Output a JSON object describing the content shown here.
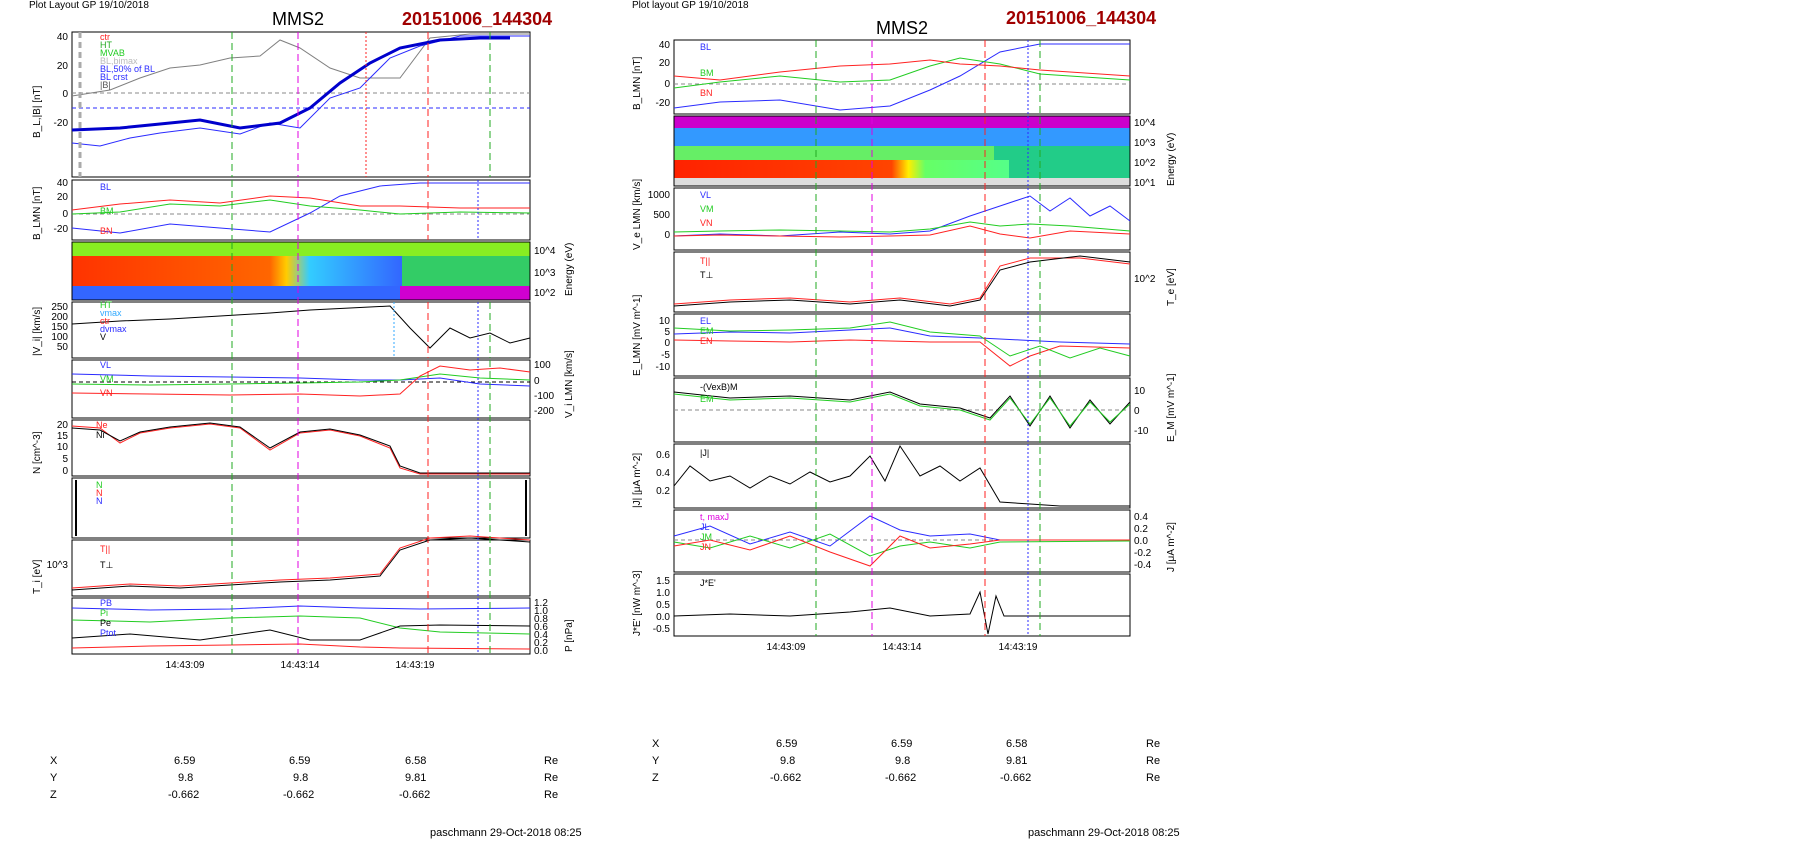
{
  "left": {
    "header": "Plot Layout GP 19/10/2018",
    "title": "MMS2",
    "event": "20151006_144304",
    "footer": "paschmann 29-Oct-2018 08:25",
    "time_ticks": [
      "14:43:09",
      "14:43:14",
      "14:43:19"
    ],
    "ephemeris": {
      "rows": [
        {
          "label": "X",
          "values": [
            "6.59",
            "6.59",
            "6.58"
          ],
          "unit": "Re"
        },
        {
          "label": "Y",
          "values": [
            "9.8",
            "9.8",
            "9.81"
          ],
          "unit": "Re"
        },
        {
          "label": "Z",
          "values": [
            "-0.662",
            "-0.662",
            "-0.662"
          ],
          "unit": "Re"
        }
      ]
    },
    "panels": {
      "p1": {
        "ylabel": "B_L,|B| [nT]",
        "yticks": [
          "40",
          "20",
          "0",
          "-20"
        ],
        "legend": [
          "ctr",
          "HT",
          "MVAB",
          "BL,bimax",
          "BL,50% of BL",
          "BL crst",
          "|B|"
        ]
      },
      "p2": {
        "ylabel": "B_LMN [nT]",
        "yticks": [
          "40",
          "20",
          "0",
          "-20"
        ],
        "legend": [
          "BL",
          "BM",
          "BN"
        ]
      },
      "p3": {
        "ylabel": "Energy (eV)",
        "yticks": [
          "10^4",
          "10^3",
          "10^2"
        ]
      },
      "p4": {
        "ylabel": "|V_i| [km/s]",
        "yticks": [
          "250",
          "200",
          "150",
          "100",
          "50"
        ],
        "legend": [
          "HT",
          "vmax",
          "ctr",
          "dvmax",
          "V"
        ]
      },
      "p5": {
        "ylabel": "V_i LMN [km/s]",
        "yticks": [
          "100",
          "0",
          "-100",
          "-200"
        ],
        "legend": [
          "VL",
          "VM",
          "VN"
        ]
      },
      "p6": {
        "ylabel": "N [cm^-3]",
        "yticks": [
          "20",
          "15",
          "10",
          "5",
          "0"
        ],
        "legend": [
          "Ne",
          "Ni"
        ]
      },
      "p7": {
        "ylabel": "N [cm^-3]",
        "legend": [
          "N",
          "N",
          "N"
        ]
      },
      "p8": {
        "ylabel": "T_i [eV]",
        "yticks": [
          "10^3"
        ],
        "legend": [
          "T||",
          "T⊥"
        ]
      },
      "p9": {
        "ylabel": "P [nPa]",
        "yticks": [
          "1.2",
          "1.0",
          "0.8",
          "0.6",
          "0.4",
          "0.2",
          "0.0"
        ],
        "legend": [
          "PB",
          "Pi",
          "Pe",
          "Ptot"
        ]
      }
    }
  },
  "right": {
    "header": "Plot layout GP 19/10/2018",
    "title": "MMS2",
    "event": "20151006_144304",
    "footer": "paschmann 29-Oct-2018 08:25",
    "time_ticks": [
      "14:43:09",
      "14:43:14",
      "14:43:19"
    ],
    "ephemeris": {
      "rows": [
        {
          "label": "X",
          "values": [
            "6.59",
            "6.59",
            "6.58"
          ],
          "unit": "Re"
        },
        {
          "label": "Y",
          "values": [
            "9.8",
            "9.8",
            "9.81"
          ],
          "unit": "Re"
        },
        {
          "label": "Z",
          "values": [
            "-0.662",
            "-0.662",
            "-0.662"
          ],
          "unit": "Re"
        }
      ]
    },
    "panels": {
      "q1": {
        "ylabel": "B_LMN [nT]",
        "yticks": [
          "40",
          "20",
          "0",
          "-20"
        ],
        "legend": [
          "BL",
          "BM",
          "BN"
        ]
      },
      "q2": {
        "ylabel": "Energy (eV)",
        "yticks": [
          "10^4",
          "10^3",
          "10^2",
          "10^1"
        ]
      },
      "q3": {
        "ylabel": "V_e LMN [km/s]",
        "yticks": [
          "1000",
          "500",
          "0"
        ],
        "legend": [
          "VL",
          "VM",
          "VN"
        ]
      },
      "q4": {
        "ylabel": "T_e [eV]",
        "yticks": [
          "10^2"
        ],
        "legend": [
          "T||",
          "T⊥"
        ]
      },
      "q5": {
        "ylabel": "E_LMN [mV m^-1]",
        "yticks": [
          "10",
          "5",
          "0",
          "-5",
          "-10"
        ],
        "legend": [
          "EL",
          "EM",
          "EN"
        ]
      },
      "q6": {
        "ylabel": "E_M [mV m^-1]",
        "yticks": [
          "10",
          "0",
          "-10"
        ],
        "legend": [
          "-(VexB)M",
          "EM"
        ]
      },
      "q7": {
        "ylabel": "|J| [μA m^-2]",
        "yticks": [
          "0.6",
          "0.4",
          "0.2"
        ],
        "legend": [
          "|J|"
        ]
      },
      "q8": {
        "ylabel": "J [μA m^-2]",
        "yticks": [
          "0.4",
          "0.2",
          "0.0",
          "-0.2",
          "-0.4"
        ],
        "legend": [
          "t, maxJ",
          "JL",
          "JM",
          "JN"
        ]
      },
      "q9": {
        "ylabel": "J*E' [nW m^-3]",
        "yticks": [
          "1.5",
          "1.0",
          "0.5",
          "0.0",
          "-0.5"
        ],
        "legend": [
          "J*E'"
        ]
      }
    }
  },
  "colors": {
    "L": "#2b2bff",
    "M": "#22cc22",
    "N": "#ff2222",
    "black": "#000000",
    "grey": "#808080",
    "magenta": "#e000e0",
    "darkred": "#a00000"
  },
  "chart_data": [
    {
      "type": "line",
      "title": "MMS2 20151006_144304 (left)",
      "xlabel": "",
      "x_range": [
        "14:43:05",
        "14:43:25"
      ],
      "series": [
        {
          "name": "|B|",
          "approx_y_nT": [
            25,
            22,
            18,
            20,
            25,
            27,
            18,
            22,
            30,
            38,
            40,
            40
          ]
        },
        {
          "name": "B_L",
          "approx_y_nT": [
            -24,
            -23,
            -21,
            -18,
            -17,
            -20,
            -10,
            5,
            20,
            33,
            39,
            39
          ]
        },
        {
          "name": "N",
          "approx_y_cm3": [
            18,
            19,
            15,
            18,
            19,
            12,
            15,
            17,
            8,
            1,
            0.5,
            0.5
          ]
        }
      ]
    },
    {
      "type": "line",
      "title": "MMS2 20151006_144304 (right)",
      "xlabel": "",
      "x_range": [
        "14:43:05",
        "14:43:25"
      ],
      "series": [
        {
          "name": "V_L",
          "approx_y_kms": [
            0,
            0,
            50,
            0,
            0,
            50,
            0,
            0,
            200,
            500,
            900,
            600
          ]
        },
        {
          "name": "|J|",
          "approx_y": [
            0.3,
            0.2,
            0.3,
            0.25,
            0.3,
            0.6,
            0.3,
            0.3,
            0.5,
            0.1,
            0.05,
            0.05
          ]
        },
        {
          "name": "J*E'",
          "approx_y": [
            0,
            0,
            0,
            0,
            0.1,
            0.2,
            0,
            0,
            1.2,
            0,
            0,
            0
          ]
        }
      ]
    }
  ]
}
